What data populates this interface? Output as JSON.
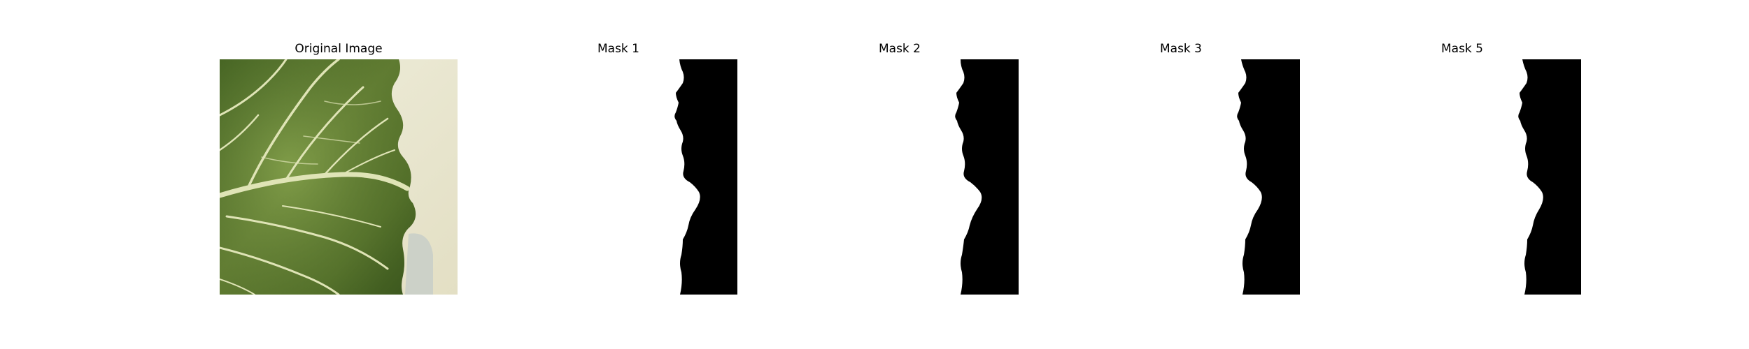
{
  "figure": {
    "panels": [
      {
        "id": "original",
        "title": "Original Image",
        "content": "leaf-photo"
      },
      {
        "id": "mask-1",
        "title": "Mask 1",
        "content": "binary-mask"
      },
      {
        "id": "mask-2",
        "title": "Mask 2",
        "content": "binary-mask"
      },
      {
        "id": "mask-3",
        "title": "Mask 3",
        "content": "binary-mask"
      },
      {
        "id": "mask-5",
        "title": "Mask 5",
        "content": "binary-mask"
      }
    ],
    "colors": {
      "background": "#ffffff",
      "mask_foreground": "#000000",
      "mask_background": "#ffffff",
      "leaf_dark": "#3e5a24",
      "leaf_mid": "#5f7d33",
      "leaf_light": "#8aa24f",
      "vein": "#d9dfb0",
      "backdrop": "#ece8d2",
      "shadow": "#c2c8c4"
    }
  }
}
